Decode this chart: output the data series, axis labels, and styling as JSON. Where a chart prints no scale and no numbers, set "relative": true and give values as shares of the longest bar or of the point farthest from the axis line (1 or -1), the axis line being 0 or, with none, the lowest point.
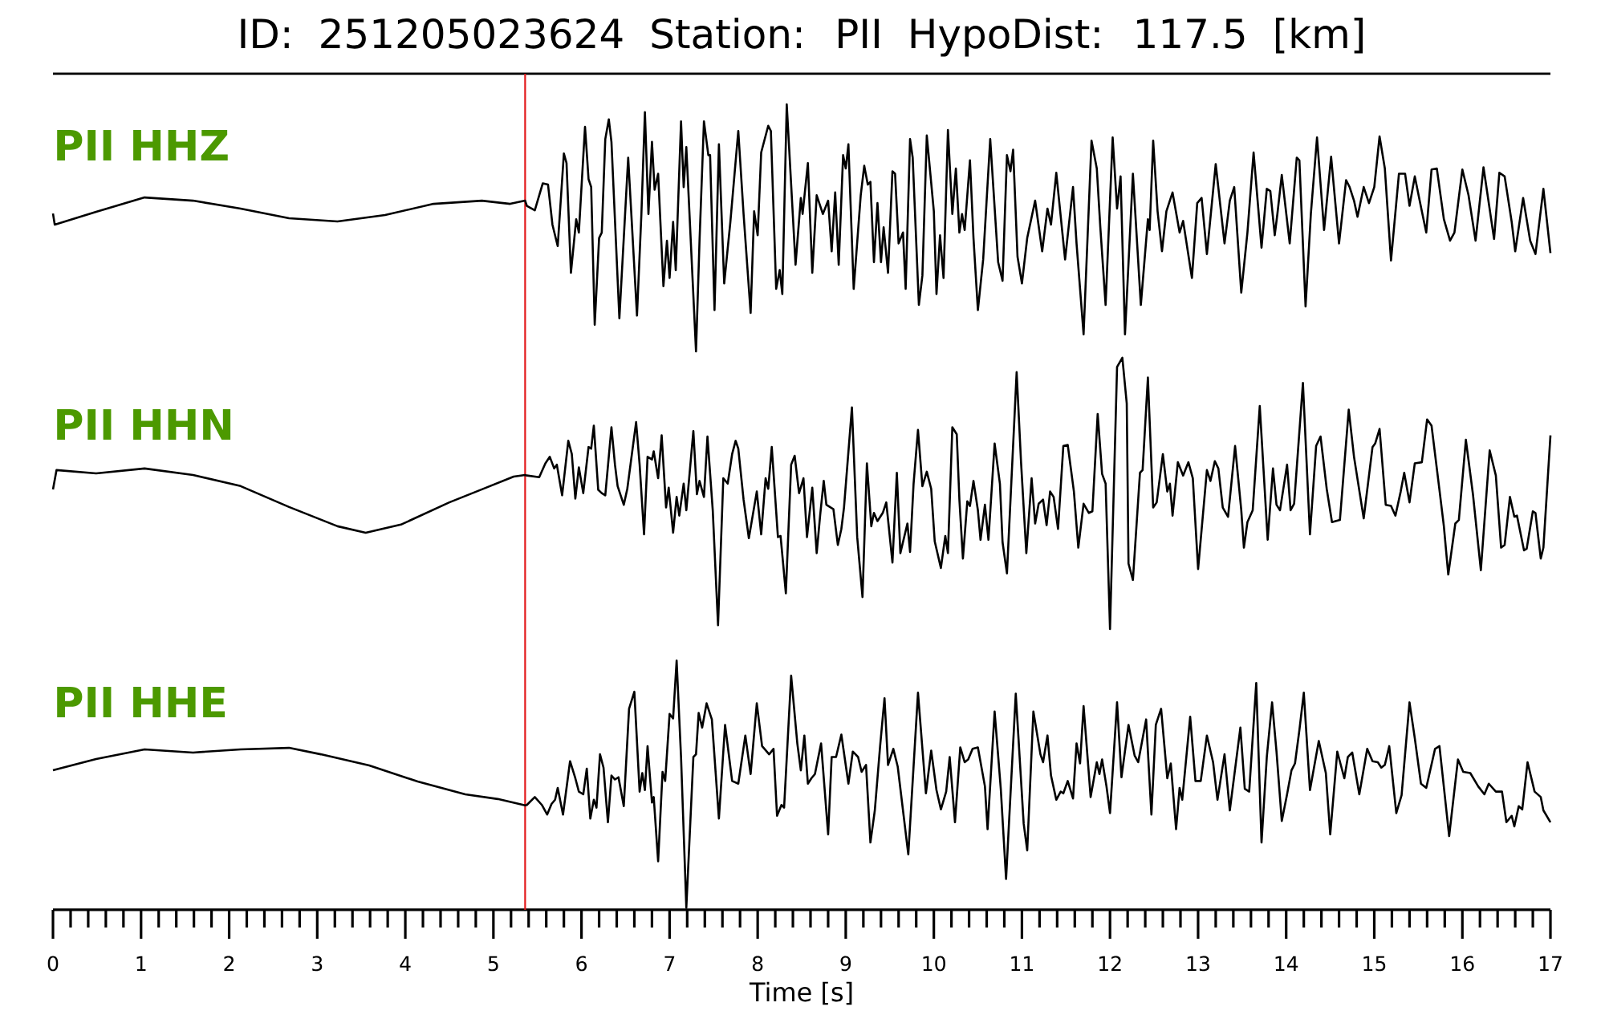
{
  "chart_data": [
    {
      "type": "line",
      "title": "ID: 251205023624   Station: PII   HypoDist:   117.5 [km]",
      "relative": true,
      "xlim": [
        0,
        17
      ],
      "tick_labels": false,
      "ref_lines": [
        {
          "axis": "x",
          "value": 5.36,
          "color": "#e31a1c"
        }
      ],
      "series": [
        {
          "name": "PII HHZ",
          "color": "#000000",
          "x": [
            0,
            0.02,
            0.49,
            1.04,
            1.59,
            2.13,
            2.68,
            3.23,
            3.77,
            4.32,
            4.87,
            5.19,
            5.36,
            5.38,
            5.47,
            5.56,
            5.62,
            5.67,
            5.73,
            5.8,
            5.83,
            5.88,
            5.94,
            5.97,
            6.04,
            6.08,
            6.11,
            6.15,
            6.2,
            6.23,
            6.27,
            6.31,
            6.34,
            6.43,
            6.53,
            6.63,
            6.68,
            6.72,
            6.76,
            6.8,
            6.83,
            6.87,
            6.93,
            6.97,
            7.0,
            7.04,
            7.07,
            7.13,
            7.16,
            7.19,
            7.3,
            7.34,
            7.39,
            7.44,
            7.46,
            7.51,
            7.56,
            7.62,
            7.69,
            7.78,
            7.84,
            7.92,
            7.96,
            8.0,
            8.04,
            8.12,
            8.15,
            8.21,
            8.25,
            8.28,
            8.33,
            8.43,
            8.49,
            8.51,
            8.57,
            8.62,
            8.67,
            8.74,
            8.8,
            8.84,
            8.88,
            8.92,
            8.97,
            9.0,
            9.03,
            9.09,
            9.17,
            9.21,
            9.25,
            9.28,
            9.32,
            9.36,
            9.4,
            9.43,
            9.48,
            9.53,
            9.56,
            9.6,
            9.65,
            9.68,
            9.73,
            9.76,
            9.83,
            9.87,
            9.92,
            10.0,
            10.03,
            10.07,
            10.11,
            10.16,
            10.21,
            10.25,
            10.29,
            10.32,
            10.35,
            10.41,
            10.45,
            10.5,
            10.56,
            10.64,
            10.73,
            10.78,
            10.83,
            10.87,
            10.9,
            10.95,
            11.0,
            11.06,
            11.15,
            11.23,
            11.29,
            11.33,
            11.39,
            11.49,
            11.58,
            11.62,
            11.7,
            11.79,
            11.85,
            11.89,
            11.95,
            12.03,
            12.08,
            12.12,
            12.17,
            12.26,
            12.35,
            12.43,
            12.45,
            12.49,
            12.54,
            12.59,
            12.64,
            12.71,
            12.79,
            12.83,
            12.93,
            12.99,
            13.04,
            13.1,
            13.2,
            13.3,
            13.36,
            13.41,
            13.49,
            13.56,
            13.63,
            13.72,
            13.78,
            13.82,
            13.87,
            13.9,
            13.95,
            14.04,
            14.12,
            14.15,
            14.22,
            14.28,
            14.35,
            14.43,
            14.51,
            14.6,
            14.68,
            14.72,
            14.77,
            14.81,
            14.88,
            14.94,
            15.0,
            15.06,
            15.12,
            15.19,
            15.28,
            15.35,
            15.4,
            15.46,
            15.54,
            15.59,
            15.65,
            15.71,
            15.79,
            15.86,
            15.91,
            16.0,
            16.07,
            16.15,
            16.24,
            16.36,
            16.42,
            16.48,
            16.56,
            16.6,
            16.69,
            16.77,
            16.83,
            16.92,
            17.0
          ],
          "values": [
            0.558,
            0.513,
            0.565,
            0.623,
            0.61,
            0.578,
            0.539,
            0.526,
            0.552,
            0.597,
            0.61,
            0.597,
            0.61,
            0.589,
            0.571,
            0.68,
            0.675,
            0.513,
            0.426,
            0.801,
            0.762,
            0.318,
            0.535,
            0.481,
            0.909,
            0.697,
            0.665,
            0.108,
            0.459,
            0.481,
            0.859,
            0.939,
            0.848,
            0.134,
            0.784,
            0.145,
            0.556,
            0.968,
            0.556,
            0.848,
            0.654,
            0.719,
            0.264,
            0.448,
            0.297,
            0.524,
            0.329,
            0.931,
            0.665,
            0.827,
            0,
            0.448,
            0.931,
            0.794,
            0.794,
            0.167,
            0.838,
            0.275,
            0.524,
            0.892,
            0.556,
            0.156,
            0.567,
            0.47,
            0.805,
            0.913,
            0.892,
            0.253,
            0.329,
            0.232,
            1,
            0.351,
            0.621,
            0.556,
            0.762,
            0.318,
            0.632,
            0.556,
            0.61,
            0.405,
            0.643,
            0.351,
            0.794,
            0.74,
            0.838,
            0.253,
            0.632,
            0.751,
            0.675,
            0.686,
            0.361,
            0.6,
            0.361,
            0.502,
            0.318,
            0.729,
            0.719,
            0.437,
            0.481,
            0.253,
            0.859,
            0.784,
            0.188,
            0.307,
            0.874,
            0.567,
            0.232,
            0.47,
            0.297,
            0.896,
            0.556,
            0.74,
            0.481,
            0.556,
            0.491,
            0.773,
            0.459,
            0.167,
            0.372,
            0.859,
            0.361,
            0.286,
            0.794,
            0.729,
            0.816,
            0.383,
            0.275,
            0.459,
            0.61,
            0.405,
            0.578,
            0.513,
            0.723,
            0.372,
            0.665,
            0.437,
            0.069,
            0.853,
            0.74,
            0.502,
            0.188,
            0.866,
            0.578,
            0.708,
            0.069,
            0.719,
            0.188,
            0.535,
            0.491,
            0.853,
            0.567,
            0.405,
            0.567,
            0.643,
            0.481,
            0.528,
            0.297,
            0.6,
            0.621,
            0.394,
            0.758,
            0.437,
            0.61,
            0.665,
            0.238,
            0.481,
            0.805,
            0.42,
            0.658,
            0.649,
            0.47,
            0.556,
            0.714,
            0.437,
            0.784,
            0.773,
            0.182,
            0.556,
            0.866,
            0.491,
            0.788,
            0.437,
            0.693,
            0.665,
            0.61,
            0.545,
            0.665,
            0.6,
            0.665,
            0.87,
            0.74,
            0.368,
            0.719,
            0.719,
            0.589,
            0.708,
            0.567,
            0.481,
            0.736,
            0.74,
            0.535,
            0.448,
            0.481,
            0.736,
            0.632,
            0.448,
            0.745,
            0.455,
            0.723,
            0.708,
            0.524,
            0.405,
            0.621,
            0.448,
            0.394,
            0.658,
            0.398
          ]
        }
      ]
    },
    {
      "type": "line",
      "relative": true,
      "xlim": [
        0,
        17
      ],
      "tick_labels": false,
      "ref_lines": [
        {
          "axis": "x",
          "value": 5.36,
          "color": "#e31a1c"
        }
      ],
      "series": [
        {
          "name": "PII HHN",
          "color": "#000000",
          "x": [
            0,
            0.04,
            0.49,
            1.04,
            1.59,
            2.13,
            2.68,
            3.23,
            3.55,
            3.95,
            4.5,
            4.87,
            5.23,
            5.36,
            5.38,
            5.52,
            5.59,
            5.64,
            5.69,
            5.72,
            5.78,
            5.85,
            5.89,
            5.93,
            5.97,
            6.02,
            6.08,
            6.11,
            6.14,
            6.19,
            6.23,
            6.27,
            6.34,
            6.38,
            6.41,
            6.48,
            6.52,
            6.62,
            6.66,
            6.71,
            6.75,
            6.8,
            6.82,
            6.87,
            6.91,
            6.96,
            6.99,
            7.04,
            7.08,
            7.11,
            7.16,
            7.19,
            7.27,
            7.31,
            7.34,
            7.39,
            7.43,
            7.49,
            7.55,
            7.61,
            7.66,
            7.71,
            7.75,
            7.78,
            7.84,
            7.9,
            7.99,
            8.04,
            8.09,
            8.12,
            8.16,
            8.23,
            8.26,
            8.32,
            8.38,
            8.42,
            8.47,
            8.52,
            8.56,
            8.62,
            8.67,
            8.71,
            8.75,
            8.78,
            8.86,
            8.91,
            8.95,
            8.98,
            9.07,
            9.13,
            9.19,
            9.24,
            9.29,
            9.32,
            9.36,
            9.42,
            9.46,
            9.53,
            9.58,
            9.62,
            9.7,
            9.73,
            9.77,
            9.82,
            9.87,
            9.92,
            9.97,
            10.01,
            10.08,
            10.13,
            10.16,
            10.21,
            10.26,
            10.29,
            10.33,
            10.38,
            10.41,
            10.45,
            10.5,
            10.53,
            10.58,
            10.62,
            10.69,
            10.75,
            10.78,
            10.83,
            10.94,
            10.99,
            11.05,
            11.11,
            11.15,
            11.19,
            11.24,
            11.28,
            11.32,
            11.36,
            11.41,
            11.47,
            11.52,
            11.59,
            11.64,
            11.7,
            11.76,
            11.8,
            11.86,
            11.91,
            11.95,
            12.0,
            12.08,
            12.14,
            12.19,
            12.21,
            12.26,
            12.34,
            12.37,
            12.43,
            12.49,
            12.53,
            12.6,
            12.65,
            12.68,
            12.71,
            12.77,
            12.83,
            12.89,
            12.94,
            13.0,
            13.1,
            13.14,
            13.19,
            13.23,
            13.28,
            13.34,
            13.42,
            13.49,
            13.52,
            13.56,
            13.62,
            13.7,
            13.79,
            13.85,
            13.89,
            13.93,
            14.01,
            14.05,
            14.09,
            14.19,
            14.27,
            14.34,
            14.39,
            14.46,
            14.52,
            14.61,
            14.71,
            14.77,
            14.88,
            14.98,
            15.01,
            15.06,
            15.13,
            15.19,
            15.24,
            15.3,
            15.34,
            15.4,
            15.46,
            15.54,
            15.6,
            15.65,
            15.74,
            15.79,
            15.84,
            15.92,
            15.96,
            16.04,
            16.12,
            16.21,
            16.31,
            16.38,
            16.44,
            16.48,
            16.54,
            16.59,
            16.62,
            16.7,
            16.73,
            16.8,
            16.83,
            16.89,
            16.92,
            17.0
          ],
          "values": [
            0.515,
            0.586,
            0.574,
            0.592,
            0.568,
            0.527,
            0.45,
            0.379,
            0.355,
            0.385,
            0.467,
            0.515,
            0.562,
            0.568,
            0.566,
            0.56,
            0.611,
            0.635,
            0.592,
            0.606,
            0.493,
            0.694,
            0.645,
            0.481,
            0.596,
            0.501,
            0.671,
            0.665,
            0.75,
            0.513,
            0.501,
            0.493,
            0.744,
            0.606,
            0.527,
            0.458,
            0.517,
            0.763,
            0.606,
            0.349,
            0.635,
            0.625,
            0.655,
            0.556,
            0.714,
            0.448,
            0.521,
            0.355,
            0.487,
            0.418,
            0.536,
            0.438,
            0.73,
            0.497,
            0.546,
            0.487,
            0.71,
            0.438,
            0.014,
            0.556,
            0.536,
            0.645,
            0.694,
            0.665,
            0.477,
            0.335,
            0.507,
            0.349,
            0.556,
            0.517,
            0.671,
            0.339,
            0.343,
            0.132,
            0.606,
            0.639,
            0.501,
            0.556,
            0.339,
            0.521,
            0.28,
            0.422,
            0.546,
            0.458,
            0.442,
            0.31,
            0.369,
            0.448,
            0.817,
            0.339,
            0.118,
            0.611,
            0.379,
            0.428,
            0.398,
            0.428,
            0.467,
            0.245,
            0.576,
            0.28,
            0.389,
            0.284,
            0.536,
            0.734,
            0.527,
            0.58,
            0.517,
            0.323,
            0.225,
            0.343,
            0.28,
            0.744,
            0.718,
            0.477,
            0.26,
            0.471,
            0.454,
            0.546,
            0.438,
            0.329,
            0.458,
            0.329,
            0.684,
            0.536,
            0.32,
            0.205,
            0.947,
            0.615,
            0.28,
            0.556,
            0.389,
            0.462,
            0.477,
            0.383,
            0.507,
            0.487,
            0.369,
            0.675,
            0.679,
            0.507,
            0.3,
            0.462,
            0.428,
            0.434,
            0.793,
            0.572,
            0.536,
            0,
            0.966,
            1,
            0.832,
            0.241,
            0.181,
            0.576,
            0.586,
            0.927,
            0.448,
            0.467,
            0.645,
            0.507,
            0.536,
            0.418,
            0.615,
            0.566,
            0.615,
            0.556,
            0.221,
            0.586,
            0.546,
            0.619,
            0.592,
            0.448,
            0.414,
            0.675,
            0.438,
            0.3,
            0.394,
            0.438,
            0.822,
            0.329,
            0.592,
            0.458,
            0.438,
            0.606,
            0.438,
            0.462,
            0.907,
            0.349,
            0.675,
            0.71,
            0.517,
            0.394,
            0.402,
            0.809,
            0.635,
            0.408,
            0.671,
            0.684,
            0.738,
            0.458,
            0.454,
            0.418,
            0.507,
            0.576,
            0.467,
            0.611,
            0.615,
            0.773,
            0.75,
            0.513,
            0.379,
            0.201,
            0.389,
            0.402,
            0.698,
            0.497,
            0.217,
            0.659,
            0.566,
            0.3,
            0.31,
            0.487,
            0.414,
            0.418,
            0.29,
            0.296,
            0.434,
            0.428,
            0.26,
            0.3,
            0.714
          ]
        }
      ]
    },
    {
      "type": "line",
      "xlabel": "Time [s]",
      "relative": true,
      "xlim": [
        0,
        17
      ],
      "tick_labels": "x",
      "xticks": [
        0,
        {
          "value": 0.2,
          "label": null
        },
        {
          "value": 0.4,
          "label": null
        },
        {
          "value": 0.6,
          "label": null
        },
        {
          "value": 0.8,
          "label": null
        },
        1,
        {
          "value": 1.2,
          "label": null
        },
        {
          "value": 1.4,
          "label": null
        },
        {
          "value": 1.6,
          "label": null
        },
        {
          "value": 1.8,
          "label": null
        },
        2,
        {
          "value": 2.2,
          "label": null
        },
        {
          "value": 2.4,
          "label": null
        },
        {
          "value": 2.6,
          "label": null
        },
        {
          "value": 2.8,
          "label": null
        },
        3,
        {
          "value": 3.2,
          "label": null
        },
        {
          "value": 3.4,
          "label": null
        },
        {
          "value": 3.6,
          "label": null
        },
        {
          "value": 3.8,
          "label": null
        },
        4,
        {
          "value": 4.2,
          "label": null
        },
        {
          "value": 4.4,
          "label": null
        },
        {
          "value": 4.6,
          "label": null
        },
        {
          "value": 4.8,
          "label": null
        },
        5,
        {
          "value": 5.2,
          "label": null
        },
        {
          "value": 5.4,
          "label": null
        },
        {
          "value": 5.6,
          "label": null
        },
        {
          "value": 5.8,
          "label": null
        },
        6,
        {
          "value": 6.2,
          "label": null
        },
        {
          "value": 6.4,
          "label": null
        },
        {
          "value": 6.6,
          "label": null
        },
        {
          "value": 6.8,
          "label": null
        },
        7,
        {
          "value": 7.2,
          "label": null
        },
        {
          "value": 7.4,
          "label": null
        },
        {
          "value": 7.6,
          "label": null
        },
        {
          "value": 7.8,
          "label": null
        },
        8,
        {
          "value": 8.2,
          "label": null
        },
        {
          "value": 8.4,
          "label": null
        },
        {
          "value": 8.6,
          "label": null
        },
        {
          "value": 8.8,
          "label": null
        },
        9,
        {
          "value": 9.2,
          "label": null
        },
        {
          "value": 9.4,
          "label": null
        },
        {
          "value": 9.6,
          "label": null
        },
        {
          "value": 9.8,
          "label": null
        },
        10,
        {
          "value": 10.2,
          "label": null
        },
        {
          "value": 10.4,
          "label": null
        },
        {
          "value": 10.6,
          "label": null
        },
        {
          "value": 10.8,
          "label": null
        },
        11,
        {
          "value": 11.2,
          "label": null
        },
        {
          "value": 11.4,
          "label": null
        },
        {
          "value": 11.6,
          "label": null
        },
        {
          "value": 11.8,
          "label": null
        },
        12,
        {
          "value": 12.2,
          "label": null
        },
        {
          "value": 12.4,
          "label": null
        },
        {
          "value": 12.6,
          "label": null
        },
        {
          "value": 12.8,
          "label": null
        },
        13,
        {
          "value": 13.2,
          "label": null
        },
        {
          "value": 13.4,
          "label": null
        },
        {
          "value": 13.6,
          "label": null
        },
        {
          "value": 13.8,
          "label": null
        },
        14,
        {
          "value": 14.2,
          "label": null
        },
        {
          "value": 14.4,
          "label": null
        },
        {
          "value": 14.6,
          "label": null
        },
        {
          "value": 14.8,
          "label": null
        },
        15,
        {
          "value": 15.2,
          "label": null
        },
        {
          "value": 15.4,
          "label": null
        },
        {
          "value": 15.6,
          "label": null
        },
        {
          "value": 15.8,
          "label": null
        },
        16,
        {
          "value": 16.2,
          "label": null
        },
        {
          "value": 16.4,
          "label": null
        },
        {
          "value": 16.6,
          "label": null
        },
        {
          "value": 16.8,
          "label": null
        },
        17
      ],
      "ref_lines": [
        {
          "axis": "x",
          "value": 5.36,
          "color": "#e31a1c"
        }
      ],
      "series": [
        {
          "name": "PII HHE",
          "color": "#000000",
          "x": [
            0,
            0.49,
            1.04,
            1.59,
            2.13,
            2.68,
            3.04,
            3.59,
            4.14,
            4.68,
            5.05,
            5.36,
            5.38,
            5.47,
            5.55,
            5.61,
            5.66,
            5.7,
            5.73,
            5.79,
            5.87,
            5.93,
            5.97,
            6.02,
            6.06,
            6.1,
            6.14,
            6.17,
            6.21,
            6.25,
            6.3,
            6.34,
            6.38,
            6.42,
            6.48,
            6.54,
            6.6,
            6.66,
            6.69,
            6.72,
            6.75,
            6.8,
            6.82,
            6.87,
            6.92,
            6.95,
            7.0,
            7.04,
            7.08,
            7.13,
            7.19,
            7.27,
            7.3,
            7.33,
            7.37,
            7.42,
            7.48,
            7.56,
            7.63,
            7.71,
            7.78,
            7.86,
            7.92,
            7.99,
            8.05,
            8.13,
            8.18,
            8.22,
            8.27,
            8.3,
            8.38,
            8.45,
            8.49,
            8.53,
            8.57,
            8.61,
            8.65,
            8.72,
            8.8,
            8.84,
            8.89,
            8.95,
            9.03,
            9.08,
            9.14,
            9.18,
            9.23,
            9.28,
            9.33,
            9.39,
            9.44,
            9.48,
            9.54,
            9.59,
            9.71,
            9.82,
            9.91,
            9.97,
            10.03,
            10.08,
            10.14,
            10.18,
            10.24,
            10.3,
            10.35,
            10.39,
            10.44,
            10.5,
            10.58,
            10.61,
            10.69,
            10.76,
            10.82,
            10.93,
            11.02,
            11.06,
            11.13,
            11.21,
            11.24,
            11.29,
            11.33,
            11.39,
            11.44,
            11.47,
            11.52,
            11.58,
            11.62,
            11.66,
            11.7,
            11.78,
            11.85,
            11.88,
            11.91,
            11.96,
            12.0,
            12.08,
            12.13,
            12.21,
            12.28,
            12.32,
            12.41,
            12.47,
            12.52,
            12.58,
            12.65,
            12.69,
            12.75,
            12.79,
            12.82,
            12.91,
            12.97,
            13.03,
            13.1,
            13.17,
            13.22,
            13.3,
            13.36,
            13.48,
            13.53,
            13.58,
            13.66,
            13.72,
            13.78,
            13.84,
            13.89,
            13.95,
            14.01,
            14.06,
            14.1,
            14.15,
            14.2,
            14.27,
            14.37,
            14.45,
            14.5,
            14.58,
            14.66,
            14.7,
            14.75,
            14.83,
            14.92,
            14.98,
            15.04,
            15.08,
            15.12,
            15.17,
            15.25,
            15.31,
            15.4,
            15.46,
            15.53,
            15.59,
            15.69,
            15.74,
            15.85,
            15.95,
            16.01,
            16.09,
            16.18,
            16.25,
            16.3,
            16.38,
            16.45,
            16.5,
            16.56,
            16.59,
            16.64,
            16.68,
            16.74,
            16.82,
            16.89,
            16.92,
            17.0
          ],
          "values": [
            0.556,
            0.602,
            0.641,
            0.628,
            0.641,
            0.647,
            0.621,
            0.576,
            0.511,
            0.459,
            0.44,
            0.414,
            0.416,
            0.448,
            0.416,
            0.377,
            0.42,
            0.437,
            0.485,
            0.377,
            0.593,
            0.524,
            0.47,
            0.459,
            0.563,
            0.361,
            0.437,
            0.405,
            0.621,
            0.567,
            0.346,
            0.535,
            0.519,
            0.528,
            0.411,
            0.805,
            0.874,
            0.47,
            0.545,
            0.476,
            0.654,
            0.426,
            0.448,
            0.188,
            0.55,
            0.513,
            0.784,
            0.766,
            1,
            0.61,
            0,
            0.61,
            0.621,
            0.788,
            0.729,
            0.827,
            0.762,
            0.361,
            0.74,
            0.513,
            0.502,
            0.697,
            0.541,
            0.827,
            0.654,
            0.621,
            0.643,
            0.372,
            0.416,
            0.405,
            0.939,
            0.665,
            0.556,
            0.697,
            0.502,
            0.524,
            0.541,
            0.665,
            0.297,
            0.61,
            0.61,
            0.701,
            0.502,
            0.632,
            0.61,
            0.55,
            0.578,
            0.264,
            0.394,
            0.654,
            0.848,
            0.578,
            0.643,
            0.571,
            0.216,
            0.87,
            0.463,
            0.636,
            0.476,
            0.398,
            0.47,
            0.61,
            0.346,
            0.649,
            0.589,
            0.6,
            0.643,
            0.649,
            0.491,
            0.318,
            0.794,
            0.481,
            0.117,
            0.866,
            0.34,
            0.232,
            0.794,
            0.621,
            0.589,
            0.697,
            0.535,
            0.437,
            0.47,
            0.463,
            0.513,
            0.442,
            0.665,
            0.584,
            0.816,
            0.448,
            0.589,
            0.541,
            0.6,
            0.491,
            0.383,
            0.831,
            0.528,
            0.74,
            0.615,
            0.589,
            0.762,
            0.377,
            0.74,
            0.805,
            0.524,
            0.584,
            0.318,
            0.485,
            0.437,
            0.773,
            0.513,
            0.513,
            0.697,
            0.589,
            0.437,
            0.621,
            0.394,
            0.729,
            0.481,
            0.47,
            0.909,
            0.264,
            0.61,
            0.831,
            0.632,
            0.351,
            0.459,
            0.556,
            0.584,
            0.719,
            0.87,
            0.476,
            0.675,
            0.545,
            0.297,
            0.632,
            0.524,
            0.61,
            0.628,
            0.459,
            0.643,
            0.593,
            0.589,
            0.567,
            0.578,
            0.654,
            0.383,
            0.455,
            0.831,
            0.686,
            0.502,
            0.485,
            0.643,
            0.654,
            0.29,
            0.6,
            0.55,
            0.545,
            0.491,
            0.459,
            0.502,
            0.47,
            0.47,
            0.346,
            0.372,
            0.329,
            0.411,
            0.398,
            0.589,
            0.47,
            0.448,
            0.394,
            0.346
          ]
        }
      ]
    }
  ]
}
